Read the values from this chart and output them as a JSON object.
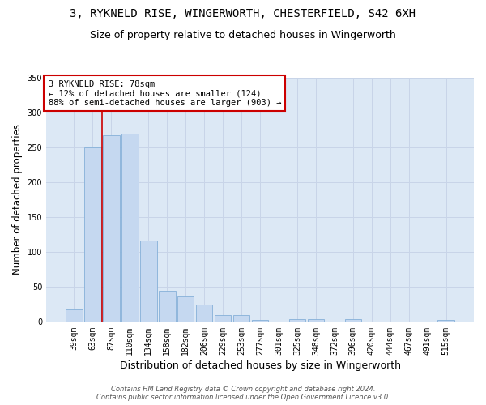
{
  "title_line1": "3, RYKNELD RISE, WINGERWORTH, CHESTERFIELD, S42 6XH",
  "title_line2": "Size of property relative to detached houses in Wingerworth",
  "xlabel": "Distribution of detached houses by size in Wingerworth",
  "ylabel": "Number of detached properties",
  "categories": [
    "39sqm",
    "63sqm",
    "87sqm",
    "110sqm",
    "134sqm",
    "158sqm",
    "182sqm",
    "206sqm",
    "229sqm",
    "253sqm",
    "277sqm",
    "301sqm",
    "325sqm",
    "348sqm",
    "372sqm",
    "396sqm",
    "420sqm",
    "444sqm",
    "467sqm",
    "491sqm",
    "515sqm"
  ],
  "values": [
    18,
    250,
    267,
    270,
    116,
    45,
    36,
    25,
    10,
    10,
    3,
    0,
    4,
    4,
    0,
    4,
    0,
    0,
    0,
    0,
    3
  ],
  "bar_color": "#c5d8f0",
  "bar_edge_color": "#85b0d8",
  "vline_x": 1.5,
  "vline_color": "#cc0000",
  "annotation_text": "3 RYKNELD RISE: 78sqm\n← 12% of detached houses are smaller (124)\n88% of semi-detached houses are larger (903) →",
  "annotation_box_color": "#ffffff",
  "annotation_box_edge": "#cc0000",
  "ylim": [
    0,
    350
  ],
  "yticks": [
    0,
    50,
    100,
    150,
    200,
    250,
    300,
    350
  ],
  "grid_color": "#c8d4e8",
  "background_color": "#dce8f5",
  "footer_line1": "Contains HM Land Registry data © Crown copyright and database right 2024.",
  "footer_line2": "Contains public sector information licensed under the Open Government Licence v3.0.",
  "title_fontsize": 10,
  "subtitle_fontsize": 9,
  "tick_fontsize": 7,
  "ylabel_fontsize": 8.5,
  "xlabel_fontsize": 9,
  "annot_fontsize": 7.5
}
